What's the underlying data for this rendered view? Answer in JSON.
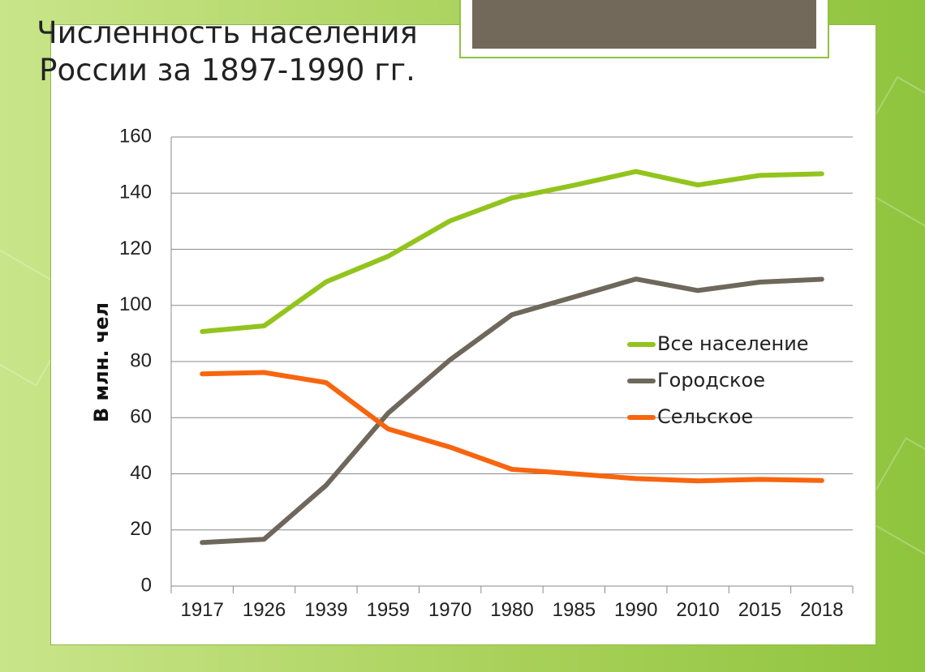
{
  "slide": {
    "title_line1": "Численность населения",
    "title_line2": "России за 1897-1990 гг."
  },
  "colors": {
    "background": "#a9d15a",
    "title_box": "#72695b",
    "grid": "#8a8a8a"
  },
  "chart_data": {
    "type": "line",
    "title": "Численность населения России за 1897-1990 гг.",
    "xlabel": "",
    "ylabel": "В млн. чел",
    "categories": [
      "1917",
      "1926",
      "1939",
      "1959",
      "1970",
      "1980",
      "1985",
      "1990",
      "2010",
      "2015",
      "2018"
    ],
    "ylim": [
      0,
      160
    ],
    "yticks": [
      0,
      20,
      40,
      60,
      80,
      100,
      120,
      140,
      160
    ],
    "grid": true,
    "legend_position": "right",
    "series": [
      {
        "name": "Все население",
        "color": "#92c41d",
        "values": [
          90.7,
          92.7,
          108.4,
          117.5,
          130.1,
          138.3,
          142.8,
          147.7,
          142.9,
          146.3,
          146.9
        ]
      },
      {
        "name": "Городское",
        "color": "#6e675b",
        "values": [
          15.5,
          16.7,
          35.9,
          61.6,
          80.6,
          96.7,
          103.0,
          109.4,
          105.3,
          108.3,
          109.3
        ]
      },
      {
        "name": "Сельское",
        "color": "#f7650f",
        "values": [
          75.6,
          76.1,
          72.5,
          56.0,
          49.5,
          41.6,
          40.0,
          38.3,
          37.5,
          38.0,
          37.6
        ]
      }
    ]
  }
}
